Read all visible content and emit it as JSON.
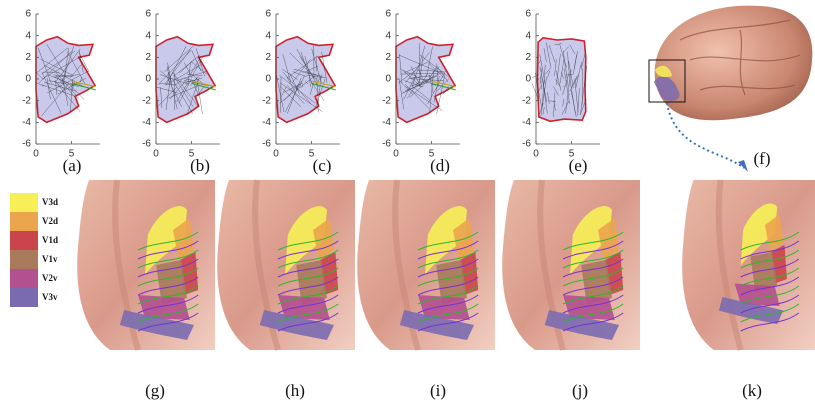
{
  "plots": [
    {
      "label": "(a)",
      "xlim": [
        0,
        9
      ],
      "ylim": [
        -6,
        6
      ],
      "xticks": [
        0,
        5
      ],
      "yticks": [
        6,
        4,
        2,
        0,
        -2,
        -4,
        -6
      ]
    },
    {
      "label": "(b)",
      "xlim": [
        0,
        9
      ],
      "ylim": [
        -6,
        6
      ],
      "xticks": [
        0,
        5
      ],
      "yticks": [
        6,
        4,
        2,
        0,
        -2,
        -4,
        -6
      ]
    },
    {
      "label": "(c)",
      "xlim": [
        0,
        9
      ],
      "ylim": [
        -6,
        6
      ],
      "xticks": [
        0,
        5
      ],
      "yticks": [
        6,
        4,
        2,
        0,
        -2,
        -4,
        -6
      ]
    },
    {
      "label": "(d)",
      "xlim": [
        0,
        9
      ],
      "ylim": [
        -6,
        6
      ],
      "xticks": [
        0,
        5
      ],
      "yticks": [
        6,
        4,
        2,
        0,
        -2,
        -4,
        -6
      ]
    },
    {
      "label": "(e)",
      "xlim": [
        0,
        9
      ],
      "ylim": [
        -6,
        6
      ],
      "xticks": [
        0,
        5
      ],
      "yticks": [
        6,
        4,
        2,
        0,
        -2,
        -4,
        -6
      ]
    }
  ],
  "images": [
    {
      "label": "(f)"
    },
    {
      "label": "(g)"
    },
    {
      "label": "(h)"
    },
    {
      "label": "(i)"
    },
    {
      "label": "(j)"
    },
    {
      "label": "(k)"
    }
  ],
  "legend": [
    {
      "name": "V3d",
      "color": "#f6ef55"
    },
    {
      "name": "V2d",
      "color": "#eba54c"
    },
    {
      "name": "V1d",
      "color": "#c9454b"
    },
    {
      "name": "V1v",
      "color": "#a97a5c"
    },
    {
      "name": "V2v",
      "color": "#b3508f"
    },
    {
      "name": "V3v",
      "color": "#7a6bb0"
    }
  ]
}
